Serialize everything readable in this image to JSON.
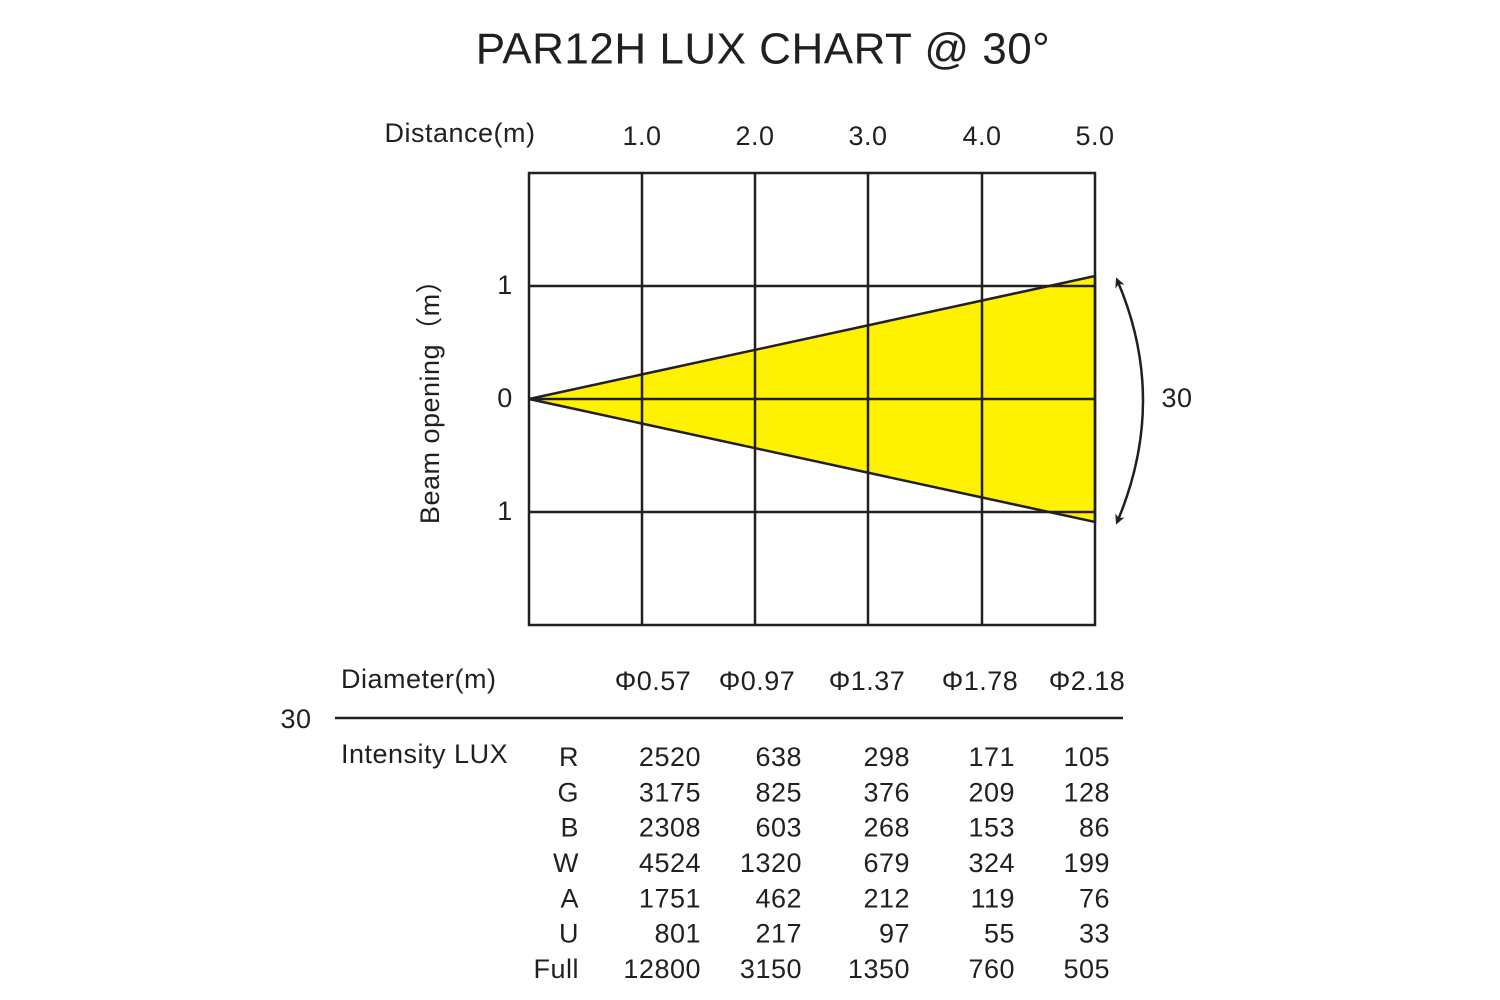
{
  "title": "PAR12H LUX CHART @ 30°",
  "diagram": {
    "distance_label": "Distance(m)",
    "distances": [
      "1.0",
      "2.0",
      "3.0",
      "4.0",
      "5.0"
    ],
    "beam_label": "Beam opening（m）",
    "beam_ticks": [
      "1",
      "0",
      "1"
    ],
    "angle": "30"
  },
  "table": {
    "diameter_label": "Diameter(m)",
    "diameters": [
      "Φ0.57",
      "Φ0.97",
      "Φ1.37",
      "Φ1.78",
      "Φ2.18"
    ],
    "angle": "30",
    "intensity_label": "Intensity LUX",
    "rows": [
      {
        "color": "R",
        "values": [
          2520,
          638,
          298,
          171,
          105
        ]
      },
      {
        "color": "G",
        "values": [
          3175,
          825,
          376,
          209,
          128
        ]
      },
      {
        "color": "B",
        "values": [
          2308,
          603,
          268,
          153,
          86
        ]
      },
      {
        "color": "W",
        "values": [
          4524,
          1320,
          679,
          324,
          199
        ]
      },
      {
        "color": "A",
        "values": [
          1751,
          462,
          212,
          119,
          76
        ]
      },
      {
        "color": "U",
        "values": [
          801,
          217,
          97,
          55,
          33
        ]
      },
      {
        "color": "Full",
        "values": [
          12800,
          3150,
          1350,
          760,
          505
        ]
      }
    ]
  }
}
